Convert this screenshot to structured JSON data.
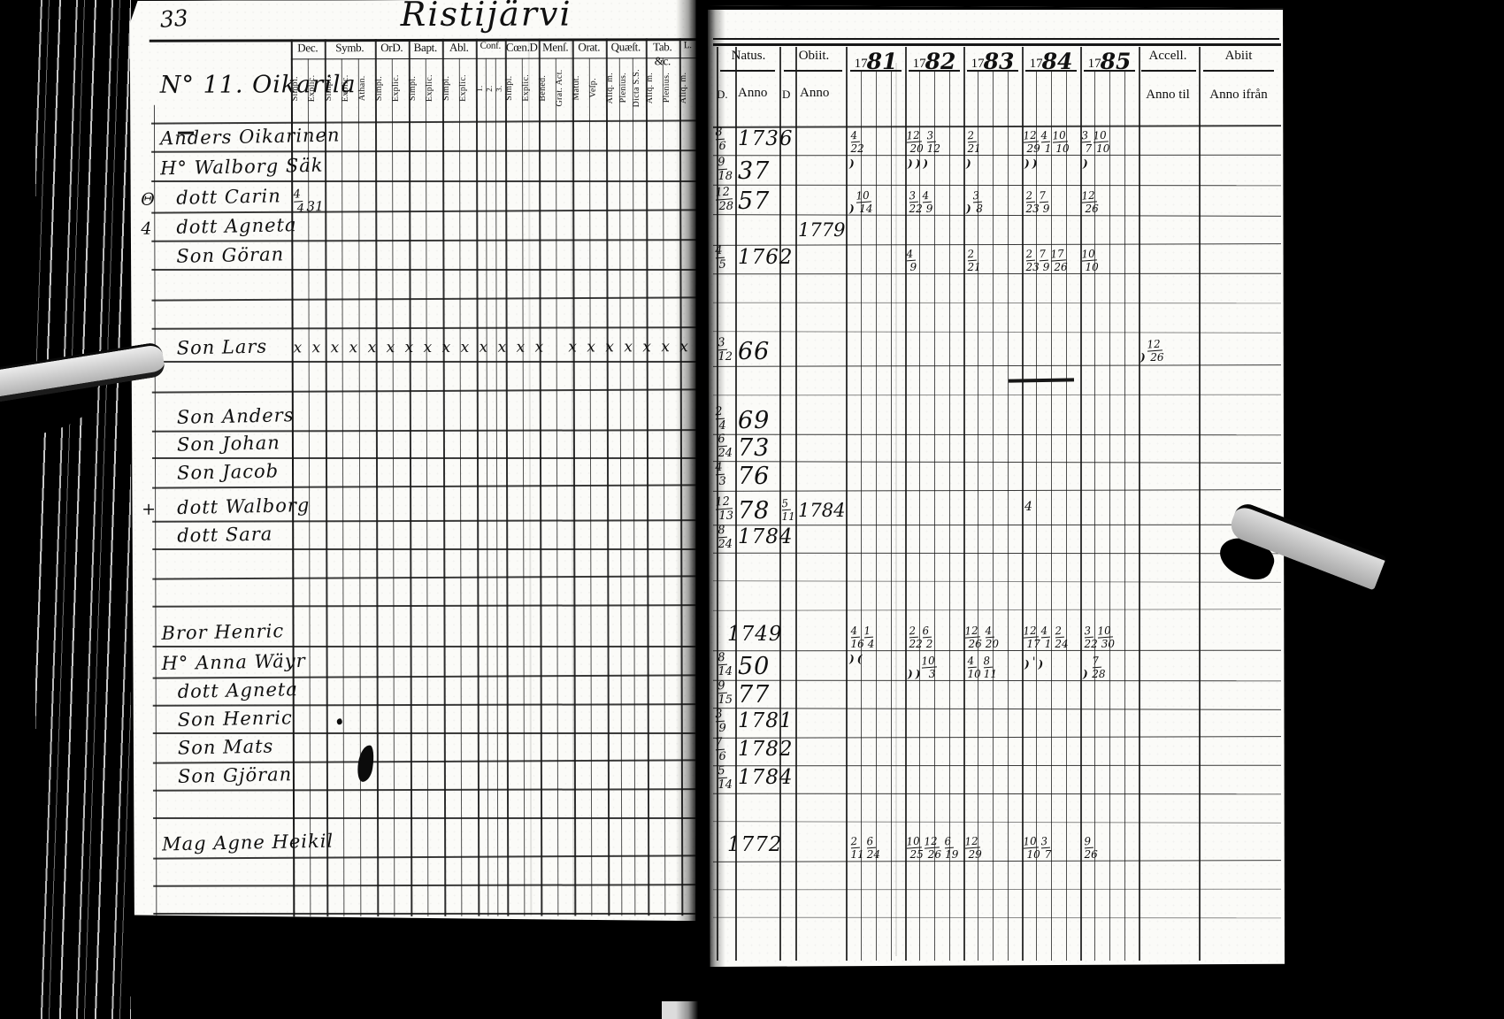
{
  "scan": {
    "page_number": "33",
    "title": "Ristijärvi",
    "household_heading": "N° 11. Oikarila"
  },
  "left_table": {
    "column_groups": [
      {
        "label": "Dec.",
        "subs": [
          "Simpl.",
          "Explic."
        ]
      },
      {
        "label": "Symb.",
        "subs": [
          "Simpl.",
          "Explic.",
          "Athan."
        ]
      },
      {
        "label": "OrD.",
        "subs": [
          "Simpl.",
          "Explic."
        ]
      },
      {
        "label": "Bapt.",
        "subs": [
          "Simpl.",
          "Explic."
        ]
      },
      {
        "label": "Abl.",
        "subs": [
          "Simpl.",
          "Explic."
        ]
      },
      {
        "label": "Conf.",
        "subs": [
          "1.",
          "2.",
          "3."
        ]
      },
      {
        "label": "Cœn.D",
        "subs": [
          "Simpl.",
          "Explic."
        ]
      },
      {
        "label": "Menſ.",
        "subs": [
          "Bened.",
          "Grat. Act."
        ]
      },
      {
        "label": "Orat.",
        "subs": [
          "Matut.",
          "Veſp."
        ]
      },
      {
        "label": "Quæſt.",
        "subs": [
          "Aliq. m.",
          "Plenius.",
          "Dicta S.S."
        ]
      },
      {
        "label": "Tab. &c.",
        "subs": [
          "Aliq. m.",
          "Plenius."
        ]
      },
      {
        "label": "L.",
        "subs": [
          "Aliq. m."
        ]
      }
    ]
  },
  "right_table": {
    "natus_label": "Natus.",
    "obiit_label": "Obiit.",
    "day_label": "D.",
    "anno_label": "Anno",
    "day2_label": "D",
    "anno2_label": "Anno",
    "years": [
      "1781",
      "1782",
      "1783",
      "1784",
      "1785"
    ],
    "accell_label": "Accell.",
    "abiit_label": "Abiit",
    "anno_til_label": "Anno til",
    "anno_ifran_label": "Anno ifrån"
  },
  "records": [
    {
      "row": 1,
      "name": "Anders Oikarinen",
      "head": true,
      "natus_d": "8/6",
      "natus_anno": "1736",
      "marks": {
        "1781": "4/22",
        "1782": "12/20 3/12",
        "1783": "2/21",
        "1784": "12/29 4/1 10/10",
        "1785": "3/7 10/10"
      }
    },
    {
      "row": 2,
      "name": "H° Walborg Säk",
      "head": true,
      "natus_d": "9/18",
      "natus_anno": "37",
      "marks": {
        "1781": ")",
        "1782": ") ) )",
        "1783": ")",
        "1784": ") )",
        "1785": ")"
      }
    },
    {
      "row": 3,
      "name": "dott Carin",
      "margin_mark": "Θ",
      "dec_note": "4/4 31",
      "natus_d": "12/28",
      "natus_anno": "57",
      "marks": {
        "1781": ") 10/14",
        "1782": "3/22 4/9",
        "1783": ") 3/8",
        "1784": "2/23 7/9",
        "1785": "12/26"
      }
    },
    {
      "row": 4,
      "name": "dott Agneta",
      "margin_mark": "4",
      "obiit_anno": "1779"
    },
    {
      "row": 5,
      "name": "Son Göran",
      "natus_d": "4/5",
      "natus_anno": "1762",
      "marks": {
        "1782": "4/9",
        "1783": "2/21",
        "1784": "2/23 7/9 17/26",
        "1785": "10/10"
      }
    },
    {
      "row": 8,
      "name": "Son Lars",
      "natus_d": "3/12",
      "natus_anno": "66",
      "cross_row": "x x x x x x x x x x x x x x   x x x x x x x x   11",
      "accell_mark": ") 12/26"
    },
    {
      "row": 10,
      "name": "Son Anders",
      "natus_d": "2/4",
      "natus_anno": "69"
    },
    {
      "row": 11,
      "name": "Son Johan",
      "natus_d": "6/24",
      "natus_anno": "73"
    },
    {
      "row": 12,
      "name": "Son Jacob",
      "natus_d": "4/3",
      "natus_anno": "76"
    },
    {
      "row": 13,
      "name": "dott Walborg",
      "margin_mark": "+",
      "natus_d": "12/13",
      "natus_anno": "78",
      "obiit_d": "5/11",
      "obiit_anno": "1784",
      "marks": {
        "1784": "4"
      }
    },
    {
      "row": 14,
      "name": "dott Sara",
      "natus_d": "8/24",
      "natus_anno": "1784"
    },
    {
      "row": 17,
      "name": "Bror Henric",
      "head": true,
      "natus_anno": "1749",
      "marks": {
        "1781": "4/16 1/4",
        "1782": "2/22 6/2",
        "1783": "12/26 4/20",
        "1784": "12/17 4/1 2/24",
        "1785": "3/22 10/30"
      }
    },
    {
      "row": 18,
      "name": "H° Anna Wäyr",
      "head": true,
      "natus_d": "8/14",
      "natus_anno": "50",
      "marks": {
        "1781": ") (",
        "1782": ") ) 10/3",
        "1783": "4/10 8/11",
        "1784": ") ' )",
        "1785": ") 7/28"
      }
    },
    {
      "row": 19,
      "name": "dott Agneta",
      "natus_d": "9/15",
      "natus_anno": "77"
    },
    {
      "row": 20,
      "name": "Son Henric",
      "natus_d": "3/9",
      "natus_anno": "1781"
    },
    {
      "row": 21,
      "name": "Son Mats",
      "natus_d": "7/6",
      "natus_anno": "1782"
    },
    {
      "row": 22,
      "name": "Son Gjöran",
      "natus_d": "5/14",
      "natus_anno": "1784"
    },
    {
      "row": 24,
      "name": "Mag Agne Heikil",
      "head": true,
      "natus_anno": "1772",
      "marks": {
        "1781": "2/11 6/24",
        "1782": "10/25 12/26 6/19",
        "1783": "12/29",
        "1784": "10/10 3/7",
        "1785": "9/26"
      }
    }
  ]
}
